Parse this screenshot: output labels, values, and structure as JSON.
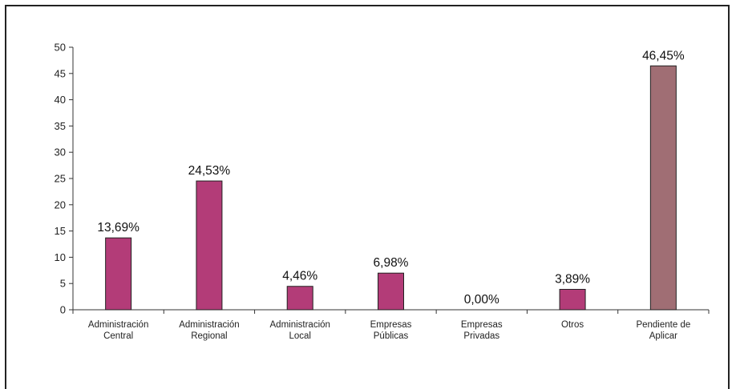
{
  "chart_data": {
    "type": "bar",
    "title": "",
    "xlabel": "",
    "ylabel": "",
    "ylim": [
      0,
      50
    ],
    "yticks": [
      0,
      5,
      10,
      15,
      20,
      25,
      30,
      35,
      40,
      45,
      50
    ],
    "grid": false,
    "legend": "none",
    "categories": [
      [
        "Administración",
        "Central"
      ],
      [
        "Administración",
        "Regional"
      ],
      [
        "Administración",
        "Local"
      ],
      [
        "Empresas",
        "Públicas"
      ],
      [
        "Empresas",
        "Privadas"
      ],
      [
        "Otros"
      ],
      [
        "Pendiente de",
        "Aplicar"
      ]
    ],
    "values": [
      13.69,
      24.53,
      4.46,
      6.98,
      0.0,
      3.89,
      46.45
    ],
    "data_labels": [
      "13,69%",
      "24,53%",
      "4,46%",
      "6,98%",
      "0,00%",
      "3,89%",
      "46,45%"
    ],
    "colors": [
      "#b33c78",
      "#b33c78",
      "#b33c78",
      "#b33c78",
      "#b33c78",
      "#b33c78",
      "#a06e74"
    ],
    "bar_edge_color": "#222222",
    "axis_color": "#333333"
  }
}
